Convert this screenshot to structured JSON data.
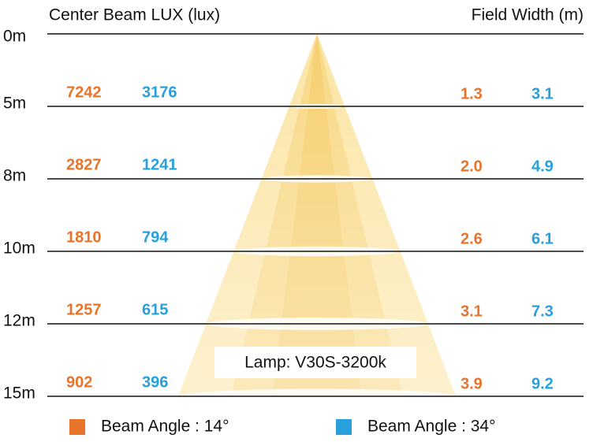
{
  "header": {
    "lux_title": "Center Beam LUX (lux)",
    "width_title": "Field Width (m)"
  },
  "top_distance": "0m",
  "rows": [
    {
      "distance": "5m",
      "lux_14": "7242",
      "lux_34": "3176",
      "width_14": "1.3",
      "width_34": "3.1"
    },
    {
      "distance": "8m",
      "lux_14": "2827",
      "lux_34": "1241",
      "width_14": "2.0",
      "width_34": "4.9"
    },
    {
      "distance": "10m",
      "lux_14": "1810",
      "lux_34": "794",
      "width_14": "2.6",
      "width_34": "6.1"
    },
    {
      "distance": "12m",
      "lux_14": "1257",
      "lux_34": "615",
      "width_14": "3.1",
      "width_34": "7.3"
    },
    {
      "distance": "15m",
      "lux_14": "902",
      "lux_34": "396",
      "width_14": "3.9",
      "width_34": "9.2"
    }
  ],
  "lamp": "Lamp: V30S-3200k",
  "legend": [
    {
      "label": "Beam Angle : 14°",
      "color": "#e8742a"
    },
    {
      "label": "Beam Angle : 34°",
      "color": "#27a0dc"
    }
  ]
}
